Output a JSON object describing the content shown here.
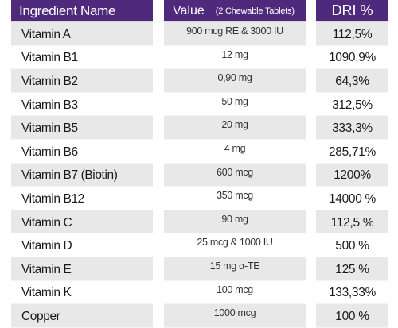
{
  "table": {
    "header": {
      "name": "Ingredient Name",
      "value": "Value",
      "value_note": "(2 Chewable Tablets)",
      "dri": "DRI %"
    },
    "rows": [
      {
        "name": "Vitamin A",
        "value": "900 mcg RE & 3000 IU",
        "dri": "112,5%"
      },
      {
        "name": "Vitamin B1",
        "value": "12 mg",
        "dri": "1090,9%"
      },
      {
        "name": "Vitamin B2",
        "value": "0,90 mg",
        "dri": "64,3%"
      },
      {
        "name": "Vitamin B3",
        "value": "50 mg",
        "dri": "312,5%"
      },
      {
        "name": "Vitamin B5",
        "value": "20 mg",
        "dri": "333,3%"
      },
      {
        "name": "Vitamin B6",
        "value": "4 mg",
        "dri": "285,71%"
      },
      {
        "name": "Vitamin B7 (Biotin)",
        "value": "600 mcg",
        "dri": "1200%"
      },
      {
        "name": "Vitamin B12",
        "value": "350 mcg",
        "dri": "14000 %"
      },
      {
        "name": "Vitamin C",
        "value": "90 mg",
        "dri": "112,5 %"
      },
      {
        "name": "Vitamin D",
        "value": "25 mcg & 1000 IU",
        "dri": "500 %"
      },
      {
        "name": "Vitamin E",
        "value": "15 mg α-TE",
        "dri": "125 %"
      },
      {
        "name": "Vitamin K",
        "value": "100 mcg",
        "dri": "133,33%"
      },
      {
        "name": "Copper",
        "value": "1000 mcg",
        "dri": "100 %"
      }
    ]
  },
  "colors": {
    "header_bg": "#4f2a7c",
    "row_alt_bg": "#e8e8e8",
    "row_bg": "#ffffff"
  }
}
